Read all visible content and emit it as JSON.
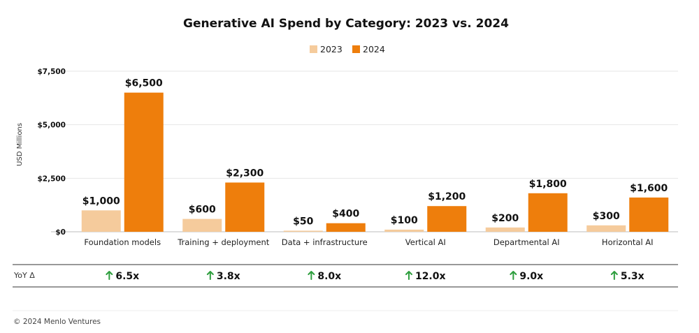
{
  "chart_data": {
    "type": "bar",
    "title": "Generative AI Spend by Category: 2023 vs. 2024",
    "ylabel": "USD Millions",
    "xlabel": "",
    "ylim": [
      0,
      7500
    ],
    "yticks": [
      0,
      2500,
      5000,
      7500
    ],
    "ytick_labels": [
      "$0",
      "$2,500",
      "$5,000",
      "$7,500"
    ],
    "grid": true,
    "legend_position": "top-center",
    "categories": [
      "Foundation models",
      "Training + deployment",
      "Data + infrastructure",
      "Vertical AI",
      "Departmental AI",
      "Horizontal AI"
    ],
    "series": [
      {
        "name": "2023",
        "color": "#F5CB9C",
        "values": [
          1000,
          600,
          50,
          100,
          200,
          300
        ],
        "labels": [
          "$1,000",
          "$600",
          "$50",
          "$100",
          "$200",
          "$300"
        ]
      },
      {
        "name": "2024",
        "color": "#EE7E0C",
        "values": [
          6500,
          2300,
          400,
          1200,
          1800,
          1600
        ],
        "labels": [
          "$6,500",
          "$2,300",
          "$400",
          "$1,200",
          "$1,800",
          "$1,600"
        ]
      }
    ],
    "yoy": {
      "label": "YoY Δ",
      "values": [
        "6.5x",
        "3.8x",
        "8.0x",
        "12.0x",
        "9.0x",
        "5.3x"
      ],
      "arrow_color": "#2E9E3E"
    }
  },
  "footer": {
    "copyright": "© 2024 Menlo Ventures"
  }
}
